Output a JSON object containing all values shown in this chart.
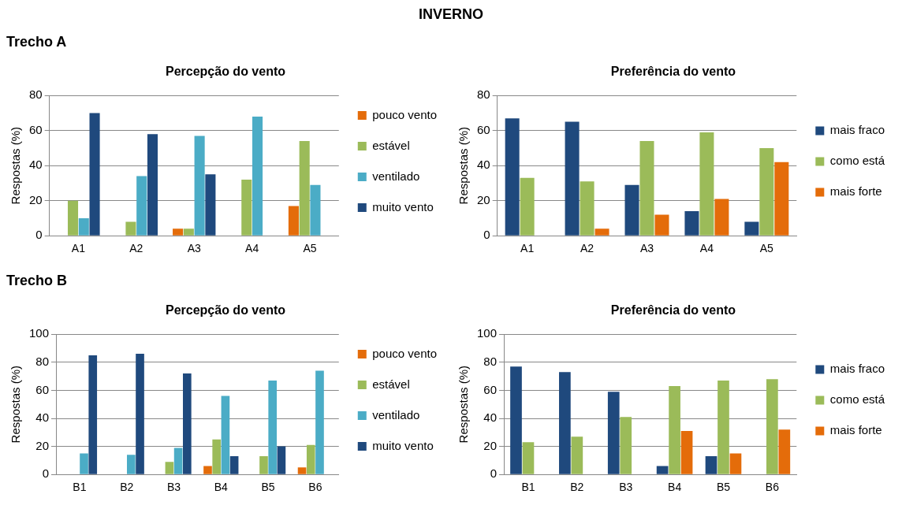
{
  "chart_data": [
    {
      "type": "bar",
      "title": "Percepção do vento",
      "annotations": [
        "INVERNO",
        "Trecho A"
      ],
      "ylabel": "Respostas (%)",
      "categories": [
        "A1",
        "A2",
        "A3",
        "A4",
        "A5"
      ],
      "ylim": [
        0,
        80
      ],
      "yticks": [
        0,
        20,
        40,
        60,
        80
      ],
      "grid": "y",
      "legend": "right",
      "series": [
        {
          "name": "pouco vento",
          "color": "#e46c0a",
          "values": [
            0,
            0,
            4,
            0,
            17
          ]
        },
        {
          "name": "estável",
          "color": "#9bbb59",
          "values": [
            20,
            8,
            4,
            32,
            54
          ]
        },
        {
          "name": "ventilado",
          "color": "#4bacc6",
          "values": [
            10,
            34,
            57,
            68,
            29
          ]
        },
        {
          "name": "muito vento",
          "color": "#1f497d",
          "values": [
            70,
            58,
            35,
            0,
            0
          ]
        }
      ]
    },
    {
      "type": "bar",
      "title": "Preferência do vento",
      "ylabel": "Respostas (%)",
      "categories": [
        "A1",
        "A2",
        "A3",
        "A4",
        "A5"
      ],
      "ylim": [
        0,
        80
      ],
      "yticks": [
        0,
        20,
        40,
        60,
        80
      ],
      "grid": "y",
      "legend": "right",
      "series": [
        {
          "name": "mais fraco",
          "color": "#1f497d",
          "values": [
            67,
            65,
            29,
            14,
            8
          ]
        },
        {
          "name": "como está",
          "color": "#9bbb59",
          "values": [
            33,
            31,
            54,
            59,
            50
          ]
        },
        {
          "name": "mais forte",
          "color": "#e46c0a",
          "values": [
            0,
            4,
            12,
            21,
            42
          ]
        }
      ]
    },
    {
      "type": "bar",
      "title": "Percepção do vento",
      "annotations": [
        "Trecho B"
      ],
      "ylabel": "Respostas (%)",
      "categories": [
        "B1",
        "B2",
        "B3",
        "B4",
        "B5",
        "B6"
      ],
      "ylim": [
        0,
        100
      ],
      "yticks": [
        0,
        20,
        40,
        60,
        80,
        100
      ],
      "grid": "y",
      "legend": "right",
      "series": [
        {
          "name": "pouco vento",
          "color": "#e46c0a",
          "values": [
            0,
            0,
            0,
            6,
            0,
            5
          ]
        },
        {
          "name": "estável",
          "color": "#9bbb59",
          "values": [
            0,
            0,
            9,
            25,
            13,
            21
          ]
        },
        {
          "name": "ventilado",
          "color": "#4bacc6",
          "values": [
            15,
            14,
            19,
            56,
            67,
            74
          ]
        },
        {
          "name": "muito vento",
          "color": "#1f497d",
          "values": [
            85,
            86,
            72,
            13,
            20,
            0
          ]
        }
      ]
    },
    {
      "type": "bar",
      "title": "Preferência do vento",
      "ylabel": "Respostas (%)",
      "categories": [
        "B1",
        "B2",
        "B3",
        "B4",
        "B5",
        "B6"
      ],
      "ylim": [
        0,
        100
      ],
      "yticks": [
        0,
        20,
        40,
        60,
        80,
        100
      ],
      "grid": "y",
      "legend": "right",
      "series": [
        {
          "name": "mais fraco",
          "color": "#1f497d",
          "values": [
            77,
            73,
            59,
            6,
            13,
            0
          ]
        },
        {
          "name": "como está",
          "color": "#9bbb59",
          "values": [
            23,
            27,
            41,
            63,
            67,
            68
          ]
        },
        {
          "name": "mais forte",
          "color": "#e46c0a",
          "values": [
            0,
            0,
            0,
            31,
            15,
            32
          ]
        }
      ]
    }
  ]
}
